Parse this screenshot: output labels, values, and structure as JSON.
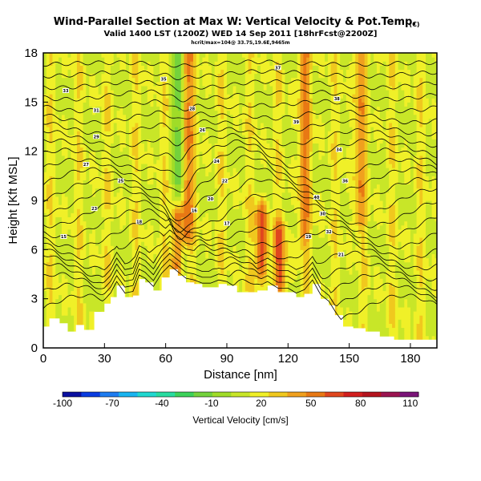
{
  "chart_data": {
    "type": "heatmap",
    "title": "Wind-Parallel Section at Max W: Vertical Velocity & Pot.Temp.",
    "title_mark": "(C)",
    "subtitle": "Valid 1400 LST (1200Z) WED 14 Sep 2011 [18hrFcst@2200Z]",
    "subtitle2": "hcrit/max=104@ 33.7S,19.6E,9465m",
    "xlabel": "Distance [nm]",
    "ylabel": "Height [Kft MSL]",
    "xlim": [
      0,
      193
    ],
    "ylim": [
      0,
      18
    ],
    "x_ticks": [
      0,
      30,
      60,
      90,
      120,
      150,
      180
    ],
    "y_ticks": [
      0,
      3,
      6,
      9,
      12,
      15,
      18
    ],
    "grid": false,
    "colorbar": {
      "label": "Vertical Velocity [cm/s]",
      "ticks": [
        -100,
        -70,
        -40,
        -10,
        20,
        50,
        80,
        110
      ],
      "range": [
        -100,
        115
      ],
      "colors": [
        "#0a10a0",
        "#0a3ce0",
        "#1e7cf0",
        "#19b4f0",
        "#20d8d0",
        "#28dca0",
        "#3cd25a",
        "#74d23c",
        "#a0dc28",
        "#c8e628",
        "#f0f028",
        "#f0c81e",
        "#f0a01e",
        "#e87814",
        "#e0461e",
        "#d21e1e",
        "#b4141e",
        "#9b1450",
        "#7a1478"
      ]
    },
    "terrain_kft": [
      [
        0,
        1.3
      ],
      [
        3,
        1.8
      ],
      [
        8,
        1.5
      ],
      [
        12,
        1.0
      ],
      [
        16,
        1.4
      ],
      [
        20,
        1.1
      ],
      [
        25,
        2.2
      ],
      [
        30,
        2.7
      ],
      [
        33,
        3.1
      ],
      [
        36,
        3.8
      ],
      [
        40,
        3.1
      ],
      [
        44,
        3.2
      ],
      [
        47,
        4.2
      ],
      [
        50,
        4.0
      ],
      [
        54,
        3.5
      ],
      [
        58,
        4.3
      ],
      [
        62,
        4.8
      ],
      [
        66,
        4.4
      ],
      [
        70,
        4.0
      ],
      [
        74,
        3.9
      ],
      [
        78,
        3.7
      ],
      [
        82,
        3.7
      ],
      [
        86,
        3.9
      ],
      [
        90,
        3.8
      ],
      [
        95,
        3.4
      ],
      [
        100,
        3.4
      ],
      [
        105,
        3.5
      ],
      [
        110,
        3.8
      ],
      [
        115,
        3.4
      ],
      [
        120,
        3.4
      ],
      [
        124,
        3.1
      ],
      [
        128,
        3.3
      ],
      [
        132,
        3.9
      ],
      [
        136,
        3.0
      ],
      [
        140,
        2.6
      ],
      [
        143,
        2.0
      ],
      [
        147,
        1.3
      ],
      [
        152,
        1.2
      ],
      [
        158,
        1.0
      ],
      [
        165,
        0.7
      ],
      [
        172,
        0.5
      ],
      [
        180,
        0.5
      ],
      [
        193,
        0.4
      ]
    ],
    "vertical_velocity_features": [
      {
        "name": "updraft column",
        "x": 70,
        "z_range": [
          7,
          18
        ],
        "w": 45
      },
      {
        "name": "downdraft column",
        "x": 67,
        "z_range": [
          5,
          18
        ],
        "w": -40
      },
      {
        "name": "low-level updraft",
        "x": 66,
        "z_range": [
          5,
          8
        ],
        "w": 65
      },
      {
        "name": "updraft",
        "x": 107,
        "z_range": [
          5,
          8
        ],
        "w": 50
      },
      {
        "name": "updraft",
        "x": 116,
        "z_range": [
          4,
          7
        ],
        "w": 40
      },
      {
        "name": "updraft band",
        "x": 128,
        "z_range": [
          7,
          18
        ],
        "w": 30
      },
      {
        "name": "updraft band",
        "x": 155,
        "z_range": [
          8,
          18
        ],
        "w": 25
      }
    ],
    "potential_temperature_contours": {
      "base_height_kft": 2.4,
      "spacing_kft": 0.65,
      "count": 24,
      "labels": [
        {
          "text": "15",
          "x": 10,
          "z": 6.8
        },
        {
          "text": "18",
          "x": 47,
          "z": 7.7
        },
        {
          "text": "23",
          "x": 25,
          "z": 8.5
        },
        {
          "text": "25",
          "x": 38,
          "z": 10.2
        },
        {
          "text": "27",
          "x": 21,
          "z": 11.2
        },
        {
          "text": "29",
          "x": 26,
          "z": 12.9
        },
        {
          "text": "31",
          "x": 26,
          "z": 14.5
        },
        {
          "text": "33",
          "x": 11,
          "z": 15.7
        },
        {
          "text": "35",
          "x": 59,
          "z": 16.4
        },
        {
          "text": "37",
          "x": 115,
          "z": 17.1
        },
        {
          "text": "16",
          "x": 74,
          "z": 8.4
        },
        {
          "text": "20",
          "x": 82,
          "z": 9.1
        },
        {
          "text": "22",
          "x": 89,
          "z": 10.2
        },
        {
          "text": "24",
          "x": 85,
          "z": 11.4
        },
        {
          "text": "26",
          "x": 78,
          "z": 13.3
        },
        {
          "text": "28",
          "x": 73,
          "z": 14.6
        },
        {
          "text": "17",
          "x": 90,
          "z": 7.6
        },
        {
          "text": "19",
          "x": 130,
          "z": 6.8
        },
        {
          "text": "21",
          "x": 146,
          "z": 5.7
        },
        {
          "text": "30",
          "x": 137,
          "z": 8.2
        },
        {
          "text": "32",
          "x": 140,
          "z": 7.1
        },
        {
          "text": "34",
          "x": 145,
          "z": 12.1
        },
        {
          "text": "36",
          "x": 148,
          "z": 10.2
        },
        {
          "text": "38",
          "x": 144,
          "z": 15.2
        },
        {
          "text": "39",
          "x": 124,
          "z": 13.8
        },
        {
          "text": "40",
          "x": 134,
          "z": 9.2
        }
      ]
    }
  }
}
